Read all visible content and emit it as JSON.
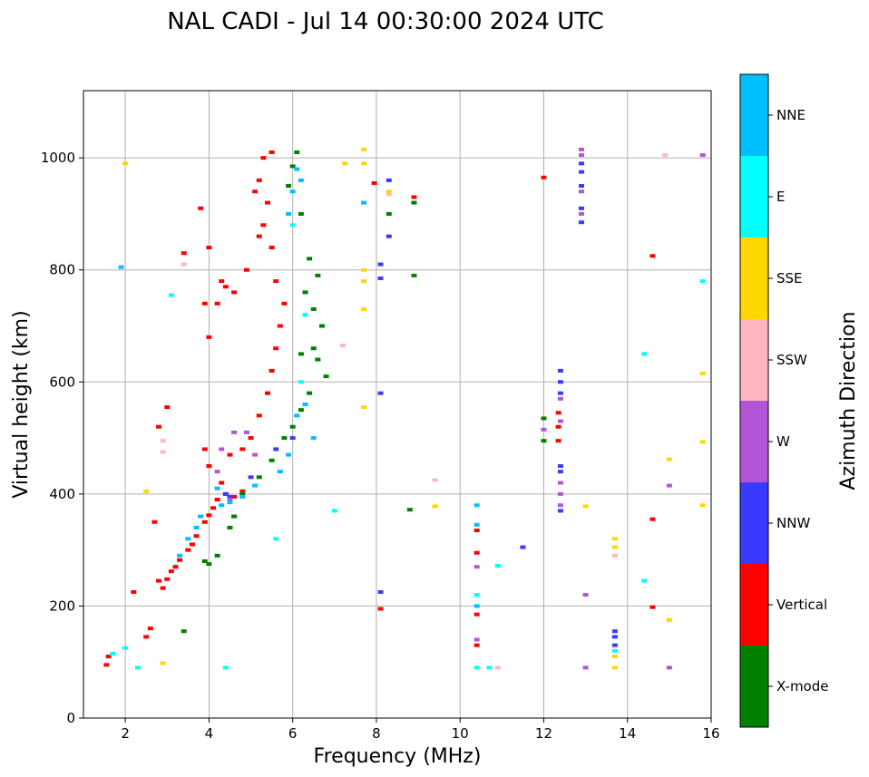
{
  "chart_data": {
    "type": "scatter",
    "title": "NAL CADI - Jul 14 00:30:00 2024 UTC",
    "xlabel": "Frequency (MHz)",
    "ylabel": "Virtual height (km)",
    "xlim": [
      1,
      16
    ],
    "ylim": [
      0,
      1120
    ],
    "xticks": [
      2,
      4,
      6,
      8,
      10,
      12,
      14,
      16
    ],
    "yticks": [
      0,
      200,
      400,
      600,
      800,
      1000
    ],
    "grid": true,
    "colorbar": {
      "title": "Azimuth Direction",
      "categories": [
        {
          "name": "X-mode",
          "color": "#008000"
        },
        {
          "name": "Vertical",
          "color": "#ff0000"
        },
        {
          "name": "NNW",
          "color": "#3a3aff"
        },
        {
          "name": "W",
          "color": "#b455d8"
        },
        {
          "name": "SSW",
          "color": "#ffb6c1"
        },
        {
          "name": "SSE",
          "color": "#ffd700"
        },
        {
          "name": "E",
          "color": "#00ffff"
        },
        {
          "name": "NNE",
          "color": "#00bfff"
        }
      ]
    },
    "series": [
      {
        "name": "Vertical",
        "points": [
          [
            1.55,
            95
          ],
          [
            1.6,
            110
          ],
          [
            2.2,
            225
          ],
          [
            2.8,
            245
          ],
          [
            2.9,
            232
          ],
          [
            3.0,
            248
          ],
          [
            3.1,
            262
          ],
          [
            3.2,
            270
          ],
          [
            3.3,
            282
          ],
          [
            3.5,
            300
          ],
          [
            3.6,
            310
          ],
          [
            3.7,
            325
          ],
          [
            3.9,
            350
          ],
          [
            4.0,
            362
          ],
          [
            4.1,
            375
          ],
          [
            4.2,
            390
          ],
          [
            4.4,
            400
          ],
          [
            4.6,
            395
          ],
          [
            4.8,
            405
          ],
          [
            4.3,
            420
          ],
          [
            4.0,
            450
          ],
          [
            3.9,
            480
          ],
          [
            4.5,
            470
          ],
          [
            4.8,
            480
          ],
          [
            5.0,
            500
          ],
          [
            5.2,
            540
          ],
          [
            5.4,
            580
          ],
          [
            5.5,
            620
          ],
          [
            5.6,
            660
          ],
          [
            5.7,
            700
          ],
          [
            5.8,
            740
          ],
          [
            5.6,
            780
          ],
          [
            5.5,
            840
          ],
          [
            5.3,
            880
          ],
          [
            5.4,
            920
          ],
          [
            5.2,
            960
          ],
          [
            5.3,
            1000
          ],
          [
            5.5,
            1010
          ],
          [
            5.1,
            940
          ],
          [
            5.2,
            860
          ],
          [
            4.0,
            840
          ],
          [
            4.3,
            780
          ],
          [
            4.4,
            770
          ],
          [
            4.6,
            760
          ],
          [
            4.9,
            800
          ],
          [
            4.2,
            740
          ],
          [
            3.9,
            740
          ],
          [
            4.0,
            680
          ],
          [
            3.8,
            910
          ],
          [
            3.4,
            830
          ],
          [
            3.0,
            555
          ],
          [
            2.8,
            520
          ],
          [
            2.7,
            350
          ],
          [
            2.5,
            145
          ],
          [
            2.6,
            160
          ],
          [
            10.4,
            185
          ],
          [
            10.4,
            295
          ],
          [
            10.4,
            335
          ],
          [
            10.4,
            130
          ],
          [
            12.0,
            965
          ],
          [
            12.35,
            495
          ],
          [
            12.35,
            520
          ],
          [
            12.35,
            545
          ],
          [
            14.6,
            825
          ],
          [
            14.6,
            355
          ],
          [
            14.6,
            198
          ],
          [
            8.9,
            930
          ],
          [
            7.95,
            955
          ],
          [
            8.1,
            195
          ]
        ]
      },
      {
        "name": "X-mode",
        "points": [
          [
            3.4,
            155
          ],
          [
            3.9,
            280
          ],
          [
            4.0,
            275
          ],
          [
            4.2,
            290
          ],
          [
            4.5,
            340
          ],
          [
            4.6,
            360
          ],
          [
            4.8,
            400
          ],
          [
            5.2,
            430
          ],
          [
            5.5,
            460
          ],
          [
            5.8,
            500
          ],
          [
            6.0,
            520
          ],
          [
            6.2,
            550
          ],
          [
            6.4,
            580
          ],
          [
            6.6,
            640
          ],
          [
            6.7,
            700
          ],
          [
            6.5,
            730
          ],
          [
            6.3,
            760
          ],
          [
            6.6,
            790
          ],
          [
            6.4,
            820
          ],
          [
            6.2,
            900
          ],
          [
            6.1,
            1010
          ],
          [
            5.9,
            950
          ],
          [
            6.0,
            985
          ],
          [
            6.8,
            610
          ],
          [
            6.5,
            660
          ],
          [
            6.2,
            650
          ],
          [
            8.9,
            920
          ],
          [
            8.9,
            790
          ],
          [
            8.3,
            900
          ],
          [
            12.0,
            535
          ],
          [
            12.0,
            495
          ],
          [
            8.8,
            372
          ]
        ]
      },
      {
        "name": "NNW",
        "points": [
          [
            4.4,
            400
          ],
          [
            4.5,
            395
          ],
          [
            5.0,
            430
          ],
          [
            5.6,
            480
          ],
          [
            6.0,
            500
          ],
          [
            8.1,
            225
          ],
          [
            8.1,
            580
          ],
          [
            8.1,
            785
          ],
          [
            8.1,
            810
          ],
          [
            8.3,
            860
          ],
          [
            8.3,
            960
          ],
          [
            12.4,
            620
          ],
          [
            12.4,
            600
          ],
          [
            12.4,
            580
          ],
          [
            12.4,
            450
          ],
          [
            12.4,
            440
          ],
          [
            12.4,
            370
          ],
          [
            12.9,
            990
          ],
          [
            12.9,
            975
          ],
          [
            12.9,
            950
          ],
          [
            12.9,
            910
          ],
          [
            12.9,
            885
          ],
          [
            13.7,
            155
          ],
          [
            13.7,
            145
          ],
          [
            13.7,
            130
          ],
          [
            11.5,
            305
          ]
        ]
      },
      {
        "name": "W",
        "points": [
          [
            4.3,
            480
          ],
          [
            4.6,
            510
          ],
          [
            4.9,
            510
          ],
          [
            4.2,
            440
          ],
          [
            5.1,
            470
          ],
          [
            4.5,
            390
          ],
          [
            12.4,
            570
          ],
          [
            12.4,
            530
          ],
          [
            12.4,
            420
          ],
          [
            12.4,
            400
          ],
          [
            12.4,
            380
          ],
          [
            12.9,
            1015
          ],
          [
            12.9,
            1005
          ],
          [
            12.9,
            940
          ],
          [
            12.9,
            900
          ],
          [
            13.0,
            220
          ],
          [
            13.0,
            90
          ],
          [
            10.4,
            140
          ],
          [
            10.4,
            270
          ],
          [
            12.0,
            515
          ],
          [
            15.0,
            90
          ],
          [
            15.0,
            415
          ],
          [
            15.8,
            1005
          ]
        ]
      },
      {
        "name": "SSW",
        "points": [
          [
            2.9,
            495
          ],
          [
            2.9,
            475
          ],
          [
            3.4,
            810
          ],
          [
            7.2,
            665
          ],
          [
            9.4,
            425
          ],
          [
            10.9,
            90
          ],
          [
            13.7,
            290
          ],
          [
            14.9,
            1005
          ],
          [
            8.3,
            935
          ]
        ]
      },
      {
        "name": "SSE",
        "points": [
          [
            2.0,
            990
          ],
          [
            2.5,
            405
          ],
          [
            2.9,
            98
          ],
          [
            7.7,
            1015
          ],
          [
            7.7,
            990
          ],
          [
            7.7,
            800
          ],
          [
            7.7,
            780
          ],
          [
            7.7,
            730
          ],
          [
            7.7,
            555
          ],
          [
            7.25,
            990
          ],
          [
            8.3,
            940
          ],
          [
            9.4,
            378
          ],
          [
            13.0,
            378
          ],
          [
            13.7,
            320
          ],
          [
            13.7,
            305
          ],
          [
            13.7,
            110
          ],
          [
            13.7,
            90
          ],
          [
            15.0,
            462
          ],
          [
            15.0,
            175
          ],
          [
            15.8,
            615
          ],
          [
            15.8,
            493
          ],
          [
            15.8,
            380
          ]
        ]
      },
      {
        "name": "E",
        "points": [
          [
            1.7,
            115
          ],
          [
            2.0,
            125
          ],
          [
            2.3,
            90
          ],
          [
            3.1,
            755
          ],
          [
            4.4,
            90
          ],
          [
            5.6,
            320
          ],
          [
            7.0,
            370
          ],
          [
            10.4,
            220
          ],
          [
            10.4,
            90
          ],
          [
            10.7,
            90
          ],
          [
            10.9,
            272
          ],
          [
            13.7,
            120
          ],
          [
            14.4,
            245
          ],
          [
            14.4,
            650
          ],
          [
            15.8,
            780
          ],
          [
            6.0,
            880
          ],
          [
            6.3,
            720
          ],
          [
            6.2,
            600
          ]
        ]
      },
      {
        "name": "NNE",
        "points": [
          [
            1.9,
            805
          ],
          [
            3.3,
            290
          ],
          [
            3.5,
            320
          ],
          [
            3.7,
            340
          ],
          [
            3.8,
            360
          ],
          [
            4.2,
            410
          ],
          [
            4.3,
            380
          ],
          [
            4.5,
            385
          ],
          [
            4.8,
            395
          ],
          [
            5.1,
            415
          ],
          [
            5.7,
            440
          ],
          [
            5.9,
            470
          ],
          [
            6.1,
            540
          ],
          [
            6.3,
            560
          ],
          [
            6.5,
            500
          ],
          [
            6.0,
            940
          ],
          [
            6.1,
            980
          ],
          [
            6.2,
            960
          ],
          [
            5.9,
            900
          ],
          [
            7.7,
            920
          ],
          [
            10.4,
            380
          ],
          [
            10.4,
            345
          ],
          [
            10.4,
            200
          ]
        ]
      }
    ]
  }
}
